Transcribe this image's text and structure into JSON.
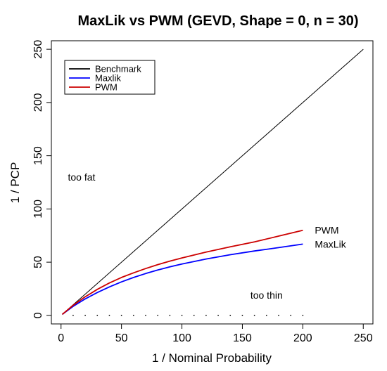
{
  "chart_data": {
    "type": "line",
    "title": "MaxLik vs PWM (GEVD, Shape = 0, n = 30)",
    "xlabel": "1 / Nominal Probability",
    "ylabel": "1 / PCP",
    "xlim": [
      -8,
      258
    ],
    "ylim": [
      -8,
      258
    ],
    "x_ticks": [
      0,
      50,
      100,
      150,
      200,
      250
    ],
    "y_ticks": [
      0,
      50,
      100,
      150,
      200,
      250
    ],
    "grid": false,
    "legend_position": "top-left",
    "series": [
      {
        "name": "Benchmark",
        "color": "#000000",
        "x": [
          1,
          250
        ],
        "y": [
          1,
          250
        ]
      },
      {
        "name": "Maxlik",
        "color": "#0000ff",
        "end_label": "MaxLik",
        "x": [
          1,
          10,
          20,
          30,
          40,
          50,
          60,
          70,
          80,
          90,
          100,
          120,
          140,
          160,
          180,
          200
        ],
        "y": [
          1,
          8.5,
          15.5,
          21.5,
          26.8,
          31.5,
          35.6,
          39.3,
          42.6,
          45.6,
          48.3,
          53,
          57,
          60.5,
          63.7,
          67
        ]
      },
      {
        "name": "PWM",
        "color": "#cc0000",
        "end_label": "PWM",
        "x": [
          1,
          10,
          20,
          30,
          40,
          50,
          60,
          70,
          80,
          90,
          100,
          120,
          140,
          160,
          180,
          200
        ],
        "y": [
          1,
          9.5,
          17.5,
          24.5,
          30.5,
          35.6,
          40,
          44,
          47.7,
          51,
          54,
          59.5,
          64.5,
          69,
          74.5,
          80
        ]
      }
    ],
    "dotted_baseline": {
      "x": [
        10,
        20,
        30,
        40,
        50,
        60,
        70,
        80,
        90,
        100,
        110,
        120,
        130,
        140,
        150,
        160,
        170,
        180,
        190,
        200
      ],
      "y": 0
    },
    "annotations": [
      {
        "text": "too fat",
        "x": 17,
        "y": 130
      },
      {
        "text": "too thin",
        "x": 170,
        "y": 19
      }
    ]
  }
}
